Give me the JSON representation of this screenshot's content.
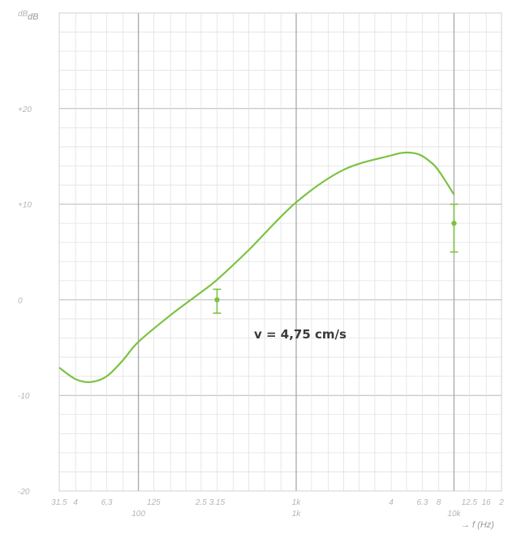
{
  "chart_data": {
    "type": "line",
    "title": "",
    "ylabel": "dB",
    "xlabel": "→ f (Hz)",
    "x_scale": "log",
    "xlim": [
      31.5,
      20000
    ],
    "ylim": [
      -20,
      30
    ],
    "grid": true,
    "y_ticks": [
      {
        "value": 30,
        "label": "dB"
      },
      {
        "value": 20,
        "label": "+20"
      },
      {
        "value": 10,
        "label": "+10"
      },
      {
        "value": 0,
        "label": "0"
      },
      {
        "value": -10,
        "label": "-10"
      },
      {
        "value": -20,
        "label": "-20"
      }
    ],
    "x_ticks": [
      {
        "value": 31.5,
        "label": "31.5"
      },
      {
        "value": 40,
        "label": "4"
      },
      {
        "value": 63,
        "label": "6,3"
      },
      {
        "value": 125,
        "label": "125"
      },
      {
        "value": 250,
        "label": "2.5"
      },
      {
        "value": 315,
        "label": "3.15"
      },
      {
        "value": 1000,
        "label": "1k"
      },
      {
        "value": 4000,
        "label": "4"
      },
      {
        "value": 6300,
        "label": "6.3"
      },
      {
        "value": 8000,
        "label": "8"
      },
      {
        "value": 12500,
        "label": "12.5"
      },
      {
        "value": 16000,
        "label": "16"
      },
      {
        "value": 20000,
        "label": "2"
      }
    ],
    "x_decade_labels": [
      {
        "value": 100,
        "label": "100"
      },
      {
        "value": 1000,
        "label": "1k"
      },
      {
        "value": 10000,
        "label": "10k"
      }
    ],
    "series": [
      {
        "color": "#7cc242",
        "x": [
          31.5,
          40,
          50,
          63,
          80,
          100,
          160,
          250,
          315,
          500,
          1000,
          2000,
          4000,
          5000,
          6000,
          7000,
          8000,
          10000
        ],
        "y": [
          -7.1,
          -8.3,
          -8.6,
          -8.0,
          -6.3,
          -4.4,
          -1.6,
          0.8,
          2.1,
          5.2,
          10.2,
          13.6,
          15.1,
          15.4,
          15.2,
          14.5,
          13.5,
          11.0
        ]
      }
    ],
    "error_bars": [
      {
        "x": 315,
        "y": 0,
        "low": -1.4,
        "high": 1.1
      },
      {
        "x": 10000,
        "y": 8,
        "low": 5,
        "high": 10
      }
    ],
    "markers": [
      {
        "x": 315,
        "y": 0
      },
      {
        "x": 10000,
        "y": 8
      }
    ],
    "annotation": "v = 4,75  cm/s"
  }
}
